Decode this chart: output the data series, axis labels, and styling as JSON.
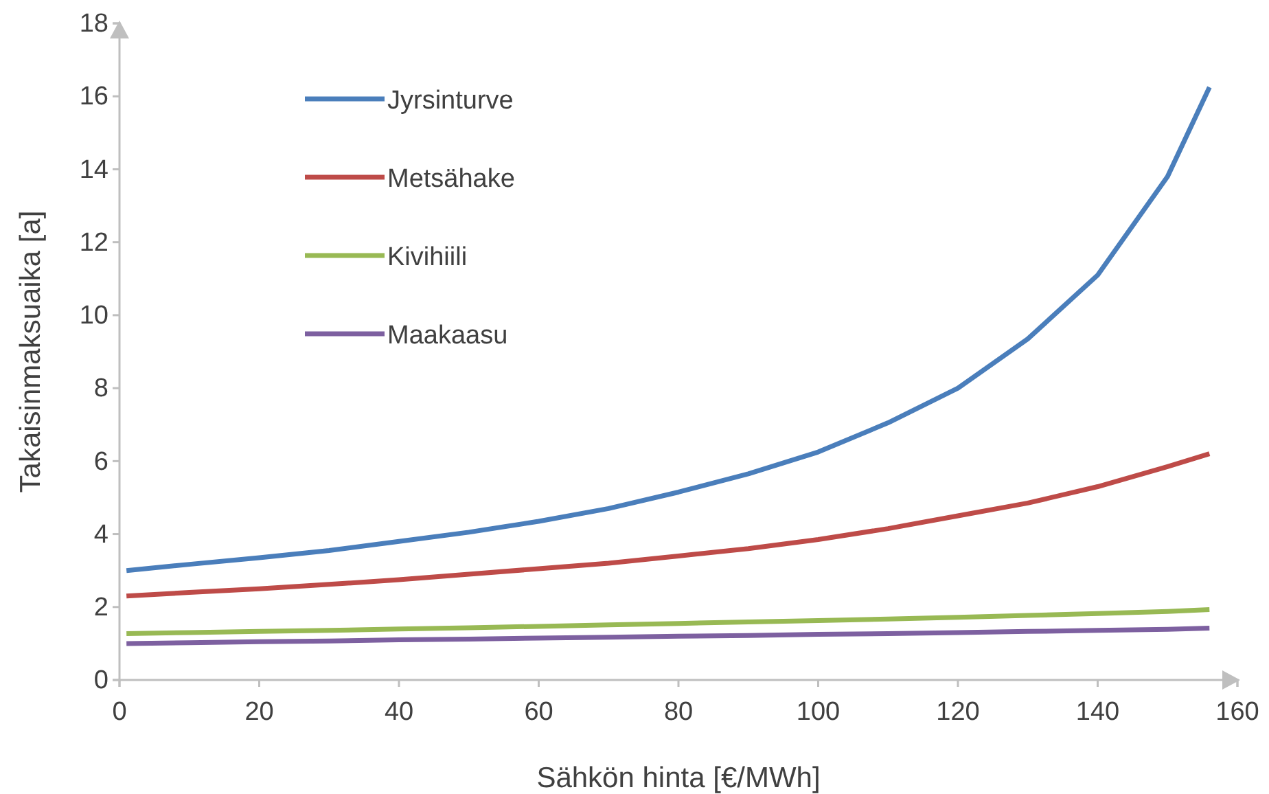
{
  "chart_data": {
    "type": "line",
    "xlabel": "Sähkön hinta [€/MWh]",
    "ylabel": "Takaisinmaksuaika [a]",
    "xlim": [
      0,
      160
    ],
    "xticks": [
      0,
      20,
      40,
      60,
      80,
      100,
      120,
      140,
      160
    ],
    "ylim": [
      0,
      18
    ],
    "yticks": [
      0,
      2,
      4,
      6,
      8,
      10,
      12,
      14,
      16,
      18
    ],
    "grid": false,
    "legend": "top left",
    "marker": "none",
    "line_style": "solid",
    "x": [
      1,
      10,
      20,
      30,
      40,
      50,
      60,
      70,
      80,
      90,
      100,
      110,
      120,
      130,
      140,
      150,
      156
    ],
    "series": [
      {
        "name": "Jyrsinturve",
        "color": "#4a7ebb",
        "values": [
          3.0,
          3.17,
          3.35,
          3.55,
          3.8,
          4.05,
          4.35,
          4.7,
          5.15,
          5.65,
          6.25,
          7.05,
          8.0,
          9.35,
          11.1,
          13.8,
          16.25
        ]
      },
      {
        "name": "Metsähake",
        "color": "#be4b48",
        "values": [
          2.3,
          2.4,
          2.5,
          2.62,
          2.75,
          2.9,
          3.05,
          3.2,
          3.4,
          3.6,
          3.85,
          4.15,
          4.5,
          4.85,
          5.3,
          5.85,
          6.2
        ]
      },
      {
        "name": "Kivihiili",
        "color": "#98b954",
        "values": [
          1.27,
          1.3,
          1.33,
          1.36,
          1.4,
          1.43,
          1.47,
          1.51,
          1.55,
          1.59,
          1.63,
          1.67,
          1.72,
          1.77,
          1.82,
          1.88,
          1.93
        ]
      },
      {
        "name": "Maakaasu",
        "color": "#7d60a0",
        "values": [
          1.0,
          1.02,
          1.05,
          1.07,
          1.1,
          1.12,
          1.15,
          1.17,
          1.2,
          1.22,
          1.25,
          1.27,
          1.3,
          1.33,
          1.36,
          1.39,
          1.42
        ]
      }
    ]
  }
}
